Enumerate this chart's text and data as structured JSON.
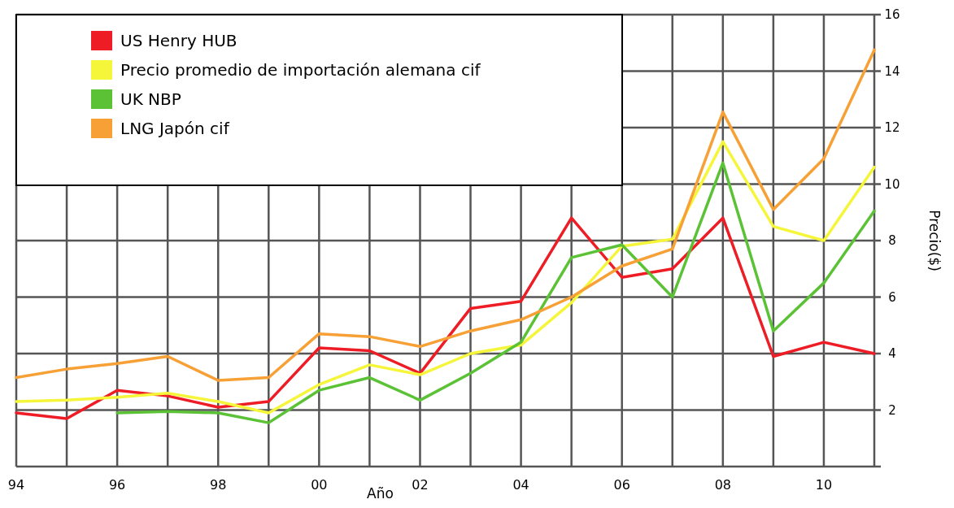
{
  "chart_data": {
    "type": "line",
    "xlabel": "Año",
    "ylabel": "Precio($)",
    "x": [
      1994,
      1995,
      1996,
      1997,
      1998,
      1999,
      2000,
      2001,
      2002,
      2003,
      2004,
      2005,
      2006,
      2007,
      2008,
      2009,
      2010,
      2011
    ],
    "series": [
      {
        "name": "US Henry HUB",
        "color": "#ee1c25",
        "values": [
          1.9,
          1.7,
          2.7,
          2.5,
          2.1,
          2.3,
          4.2,
          4.1,
          3.3,
          5.6,
          5.85,
          8.8,
          6.7,
          7.0,
          8.8,
          3.9,
          4.4,
          4.0
        ]
      },
      {
        "name": "Precio promedio de importación alemana cif",
        "color": "#f5f53a",
        "values": [
          2.3,
          2.35,
          2.45,
          2.6,
          2.3,
          1.9,
          2.9,
          3.6,
          3.25,
          4.0,
          4.3,
          5.8,
          7.8,
          8.05,
          11.5,
          8.5,
          8.0,
          10.6
        ]
      },
      {
        "name": "UK NBP",
        "color": "#5bc236",
        "values": [
          null,
          null,
          1.9,
          1.95,
          1.9,
          1.55,
          2.7,
          3.15,
          2.35,
          3.3,
          4.4,
          7.4,
          7.85,
          6.0,
          10.75,
          4.8,
          6.5,
          9.05
        ]
      },
      {
        "name": "LNG Japón cif",
        "color": "#f7a035",
        "values": [
          3.15,
          3.45,
          3.65,
          3.9,
          3.05,
          3.15,
          4.7,
          4.6,
          4.25,
          4.8,
          5.2,
          6.0,
          7.1,
          7.7,
          12.55,
          9.1,
          10.9,
          14.75
        ]
      }
    ],
    "xlim": [
      1994,
      2011
    ],
    "xticks": [
      {
        "value": 1994,
        "label": "94"
      },
      {
        "value": 1996,
        "label": "96"
      },
      {
        "value": 1998,
        "label": "98"
      },
      {
        "value": 2000,
        "label": "00"
      },
      {
        "value": 2002,
        "label": "02"
      },
      {
        "value": 2004,
        "label": "04"
      },
      {
        "value": 2006,
        "label": "06"
      },
      {
        "value": 2008,
        "label": "08"
      },
      {
        "value": 2010,
        "label": "10"
      }
    ],
    "ylim": [
      0,
      16
    ],
    "yticks": [
      {
        "value": 0,
        "label": null
      },
      2,
      4,
      6,
      8,
      10,
      12,
      14,
      16
    ],
    "grid": true,
    "legend": "top left",
    "line_style": "solid",
    "marker": "none"
  }
}
